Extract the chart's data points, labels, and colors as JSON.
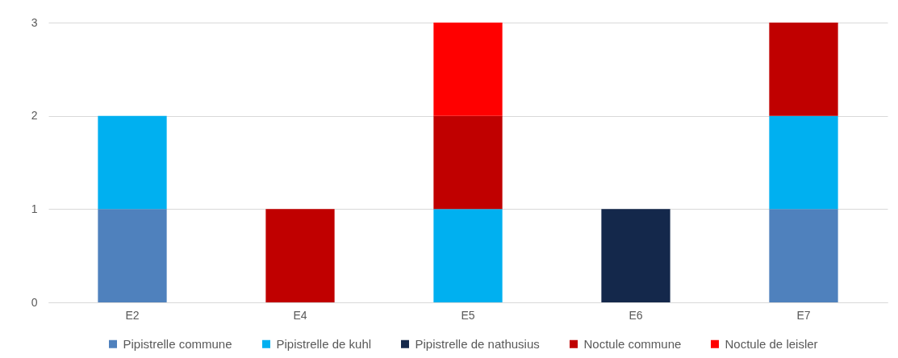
{
  "chart_data": {
    "type": "bar",
    "stacked": true,
    "categories": [
      "E2",
      "E4",
      "E5",
      "E6",
      "E7"
    ],
    "series": [
      {
        "name": "Pipistrelle commune",
        "color": "#4f81bd",
        "values": [
          1,
          null,
          null,
          null,
          1
        ]
      },
      {
        "name": "Pipistrelle de kuhl",
        "color": "#00b0f0",
        "values": [
          1,
          null,
          1,
          null,
          1
        ]
      },
      {
        "name": "Pipistrelle de nathusius",
        "color": "#14284b",
        "values": [
          null,
          null,
          null,
          1,
          null
        ]
      },
      {
        "name": "Noctule commune",
        "color": "#c00000",
        "values": [
          null,
          1,
          1,
          null,
          1
        ]
      },
      {
        "name": "Noctule de leisler",
        "color": "#ff0000",
        "values": [
          null,
          null,
          1,
          null,
          null
        ]
      }
    ],
    "ylim": [
      0,
      3
    ],
    "yticks": [
      0,
      1,
      2,
      3
    ],
    "grid": "y",
    "legend": "bottom"
  }
}
